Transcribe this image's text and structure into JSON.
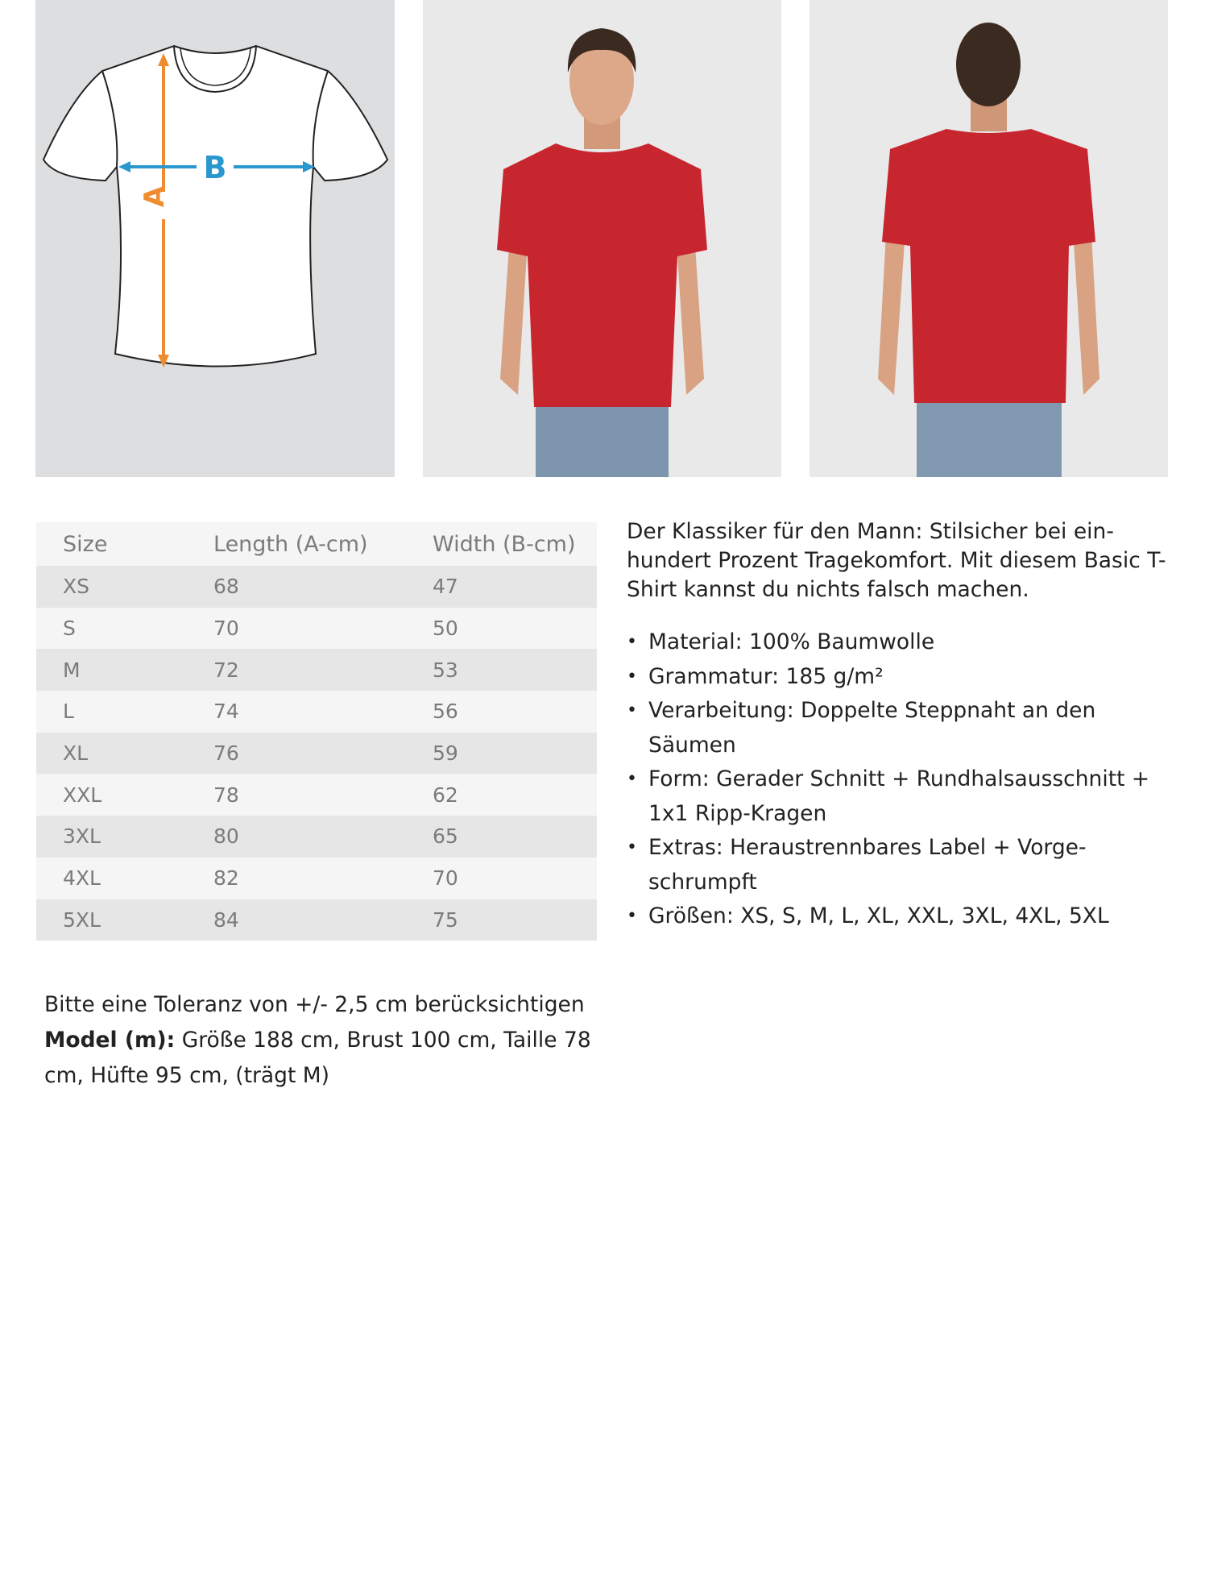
{
  "images": {
    "diagram": {
      "label_a": "A",
      "label_b": "B",
      "colors": {
        "a_arrow": "#ee8d2f",
        "b_arrow": "#2a98cf"
      }
    },
    "front_photo": {
      "subject": "model-front",
      "shirt_color": "#c8262e"
    },
    "back_photo": {
      "subject": "model-back",
      "shirt_color": "#c8262e"
    }
  },
  "size_table": {
    "headers": [
      "Size",
      "Length (A-cm)",
      "Width (B-cm)"
    ],
    "rows": [
      [
        "XS",
        "68",
        "47"
      ],
      [
        "S",
        "70",
        "50"
      ],
      [
        "M",
        "72",
        "53"
      ],
      [
        "L",
        "74",
        "56"
      ],
      [
        "XL",
        "76",
        "59"
      ],
      [
        "XXL",
        "78",
        "62"
      ],
      [
        "3XL",
        "80",
        "65"
      ],
      [
        "4XL",
        "82",
        "70"
      ],
      [
        "5XL",
        "84",
        "75"
      ]
    ]
  },
  "description": {
    "intro": "Der Klassiker für den Mann: Stilsicher bei ein­hundert Prozent Tragekomfort. Mit diesem Basic T-Shirt kannst du nichts falsch machen.",
    "features": [
      "Material: 100% Baumwolle",
      "Grammatur: 185 g/m²",
      "Verarbeitung: Doppelte Steppnaht an den Säumen",
      "Form: Gerader Schnitt + Rundhalsausschnitt + 1x1 Ripp-Kragen",
      "Extras: Heraustrennbares Label + Vorge­schrumpft",
      "Größen: XS, S, M, L, XL, XXL, 3XL, 4XL, 5XL"
    ]
  },
  "notes": {
    "tolerance": "Bitte eine Toleranz von +/- 2,5 cm berücksichtigen",
    "model_label": "Model (m):",
    "model_text": " Größe 188 cm, Brust 100 cm, Taille 78 cm, Hüfte 95 cm, (trägt M)"
  }
}
